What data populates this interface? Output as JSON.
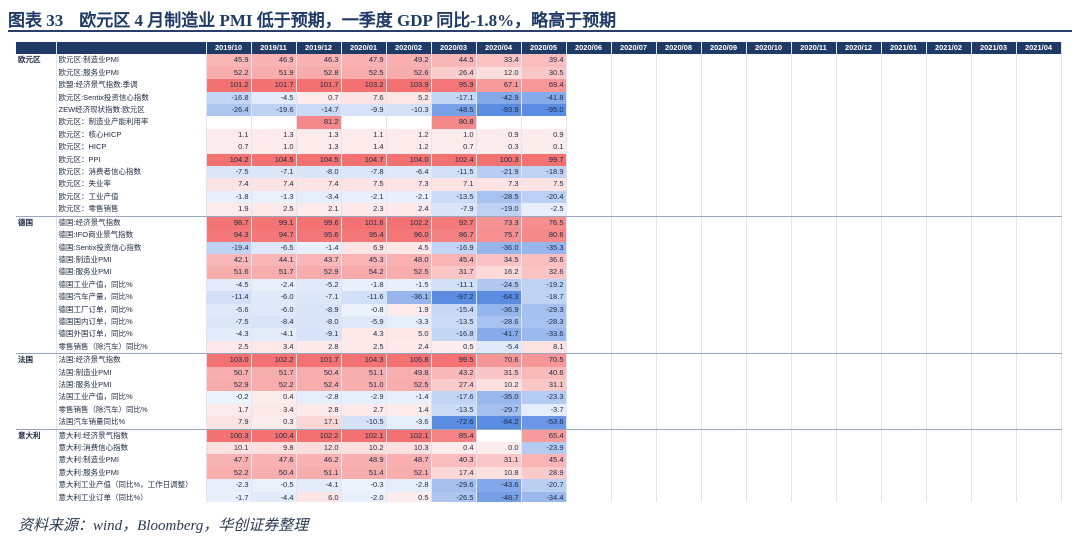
{
  "title": {
    "number": "图表 33",
    "text": "欧元区 4 月制造业 PMI 低于预期，一季度 GDP 同比-1.8%，略高于预期"
  },
  "columns": [
    "2019/10",
    "2019/11",
    "2019/12",
    "2020/01",
    "2020/02",
    "2020/03",
    "2020/04",
    "2020/05",
    "2020/06",
    "2020/07",
    "2020/08",
    "2020/09",
    "2020/10",
    "2020/11",
    "2020/12",
    "2021/01",
    "2021/02",
    "2021/03",
    "2021/04"
  ],
  "rows": [
    {
      "group": "欧元区",
      "label": "欧元区:制造业PMI",
      "values": [
        "45.9",
        "46.9",
        "46.3",
        "47.9",
        "49.2",
        "44.5",
        "33.4",
        "39.4",
        "",
        "",
        "",
        "",
        "",
        "",
        "",
        "",
        "",
        "",
        ""
      ]
    },
    {
      "group": "",
      "label": "欧元区:服务业PMI",
      "values": [
        "52.2",
        "51.9",
        "52.8",
        "52.5",
        "52.6",
        "26.4",
        "12.0",
        "30.5",
        "",
        "",
        "",
        "",
        "",
        "",
        "",
        "",
        "",
        "",
        ""
      ]
    },
    {
      "group": "",
      "label": "欧盟:经济景气指数:季调",
      "values": [
        "101.2",
        "101.7",
        "101.7",
        "103.2",
        "103.9",
        "95.9",
        "67.1",
        "69.4",
        "",
        "",
        "",
        "",
        "",
        "",
        "",
        "",
        "",
        "",
        ""
      ]
    },
    {
      "group": "",
      "label": "欧元区:Sentix投资信心指数",
      "values": [
        "-16.8",
        "-4.5",
        "0.7",
        "7.6",
        "5.2",
        "-17.1",
        "-42.9",
        "-41.8",
        "",
        "",
        "",
        "",
        "",
        "",
        "",
        "",
        "",
        "",
        ""
      ]
    },
    {
      "group": "",
      "label": "ZEW经济现状指数:欧元区",
      "values": [
        "-26.4",
        "-19.6",
        "-14.7",
        "-9.9",
        "-10.3",
        "-48.5",
        "-93.9",
        "-95.0",
        "",
        "",
        "",
        "",
        "",
        "",
        "",
        "",
        "",
        "",
        ""
      ]
    },
    {
      "group": "",
      "label": "欧元区：制造业产能利用率",
      "values": [
        "",
        "",
        "81.2",
        "",
        "",
        "80.8",
        "",
        "",
        "",
        "",
        "",
        "",
        "",
        "",
        "",
        "",
        "",
        "",
        ""
      ]
    },
    {
      "group": "",
      "label": "欧元区：核心HICP",
      "values": [
        "1.1",
        "1.3",
        "1.3",
        "1.1",
        "1.2",
        "1.0",
        "0.9",
        "0.9",
        "",
        "",
        "",
        "",
        "",
        "",
        "",
        "",
        "",
        "",
        ""
      ]
    },
    {
      "group": "",
      "label": "欧元区：HICP",
      "values": [
        "0.7",
        "1.0",
        "1.3",
        "1.4",
        "1.2",
        "0.7",
        "0.3",
        "0.1",
        "",
        "",
        "",
        "",
        "",
        "",
        "",
        "",
        "",
        "",
        ""
      ]
    },
    {
      "group": "",
      "label": "欧元区：PPI",
      "values": [
        "104.2",
        "104.5",
        "104.5",
        "104.7",
        "104.0",
        "102.4",
        "100.3",
        "99.7",
        "",
        "",
        "",
        "",
        "",
        "",
        "",
        "",
        "",
        "",
        ""
      ]
    },
    {
      "group": "",
      "label": "欧元区：消费者信心指数",
      "values": [
        "-7.5",
        "-7.1",
        "-8.0",
        "-7.8",
        "-6.4",
        "-11.5",
        "-21.9",
        "-18.9",
        "",
        "",
        "",
        "",
        "",
        "",
        "",
        "",
        "",
        "",
        ""
      ]
    },
    {
      "group": "",
      "label": "欧元区：失业率",
      "values": [
        "7.4",
        "7.4",
        "7.4",
        "7.5",
        "7.3",
        "7.1",
        "7.3",
        "7.5",
        "",
        "",
        "",
        "",
        "",
        "",
        "",
        "",
        "",
        "",
        ""
      ]
    },
    {
      "group": "",
      "label": "欧元区：工业产值",
      "values": [
        "-1.8",
        "-1.3",
        "-3.4",
        "-2.1",
        "-2.1",
        "-13.5",
        "-28.5",
        "-20.4",
        "",
        "",
        "",
        "",
        "",
        "",
        "",
        "",
        "",
        "",
        ""
      ]
    },
    {
      "group": "",
      "label": "欧元区：零售销售",
      "values": [
        "1.9",
        "2.5",
        "2.1",
        "2.3",
        "2.4",
        "-7.9",
        "-19.0",
        "-2.5",
        "",
        "",
        "",
        "",
        "",
        "",
        "",
        "",
        "",
        "",
        ""
      ],
      "end": true
    },
    {
      "group": "德国",
      "label": "德国:经济景气指数",
      "values": [
        "98.7",
        "99.1",
        "99.6",
        "101.6",
        "102.2",
        "92.7",
        "73.3",
        "76.5",
        "",
        "",
        "",
        "",
        "",
        "",
        "",
        "",
        "",
        "",
        ""
      ]
    },
    {
      "group": "",
      "label": "德国:IFO商业景气指数",
      "values": [
        "94.3",
        "94.7",
        "95.6",
        "95.4",
        "96.0",
        "86.7",
        "75.7",
        "80.6",
        "",
        "",
        "",
        "",
        "",
        "",
        "",
        "",
        "",
        "",
        ""
      ]
    },
    {
      "group": "",
      "label": "德国:Sentix投资信心指数",
      "values": [
        "-19.4",
        "-6.5",
        "-1.4",
        "6.9",
        "4.5",
        "-16.9",
        "-36.0",
        "-35.3",
        "",
        "",
        "",
        "",
        "",
        "",
        "",
        "",
        "",
        "",
        ""
      ]
    },
    {
      "group": "",
      "label": "德国:制造业PMI",
      "values": [
        "42.1",
        "44.1",
        "43.7",
        "45.3",
        "48.0",
        "45.4",
        "34.5",
        "36.6",
        "",
        "",
        "",
        "",
        "",
        "",
        "",
        "",
        "",
        "",
        ""
      ]
    },
    {
      "group": "",
      "label": "德国:服务业PMI",
      "values": [
        "51.6",
        "51.7",
        "52.9",
        "54.2",
        "52.5",
        "31.7",
        "16.2",
        "32.6",
        "",
        "",
        "",
        "",
        "",
        "",
        "",
        "",
        "",
        "",
        ""
      ]
    },
    {
      "group": "",
      "label": "德国工业产值，同比%",
      "values": [
        "-4.5",
        "-2.4",
        "-5.2",
        "-1.8",
        "-1.5",
        "-11.1",
        "-24.5",
        "-19.2",
        "",
        "",
        "",
        "",
        "",
        "",
        "",
        "",
        "",
        "",
        ""
      ]
    },
    {
      "group": "",
      "label": "德国汽车产量，同比%",
      "values": [
        "-11.4",
        "-6.0",
        "-7.1",
        "-11.6",
        "-36.1",
        "-97.2",
        "-64.3",
        "-18.7",
        "",
        "",
        "",
        "",
        "",
        "",
        "",
        "",
        "",
        "",
        ""
      ]
    },
    {
      "group": "",
      "label": "德国工厂订单，同比%",
      "values": [
        "-5.6",
        "-6.0",
        "-8.9",
        "-0.8",
        "1.9",
        "-15.4",
        "-36.9",
        "-29.3",
        "",
        "",
        "",
        "",
        "",
        "",
        "",
        "",
        "",
        "",
        ""
      ]
    },
    {
      "group": "",
      "label": "德国国内订单，同比%",
      "values": [
        "-7.5",
        "-8.4",
        "-8.0",
        "-5.9",
        "-3.3",
        "-13.5",
        "-28.6",
        "-28.3",
        "",
        "",
        "",
        "",
        "",
        "",
        "",
        "",
        "",
        "",
        ""
      ]
    },
    {
      "group": "",
      "label": "德国外国订单，同比%",
      "values": [
        "-4.3",
        "-4.1",
        "-9.1",
        "4.3",
        "5.0",
        "-16.8",
        "-41.7",
        "-33.6",
        "",
        "",
        "",
        "",
        "",
        "",
        "",
        "",
        "",
        "",
        ""
      ]
    },
    {
      "group": "",
      "label": "零售销售（除汽车）同比%",
      "values": [
        "2.5",
        "3.4",
        "2.8",
        "2.5",
        "2.4",
        "0.5",
        "-5.4",
        "8.1",
        "",
        "",
        "",
        "",
        "",
        "",
        "",
        "",
        "",
        "",
        ""
      ],
      "end": true
    },
    {
      "group": "法国",
      "label": "法国:经济景气指数",
      "values": [
        "103.0",
        "102.2",
        "101.7",
        "104.3",
        "105.8",
        "99.5",
        "70.6",
        "70.5",
        "",
        "",
        "",
        "",
        "",
        "",
        "",
        "",
        "",
        "",
        ""
      ]
    },
    {
      "group": "",
      "label": "法国:制造业PMI",
      "values": [
        "50.7",
        "51.7",
        "50.4",
        "51.1",
        "49.8",
        "43.2",
        "31.5",
        "40.6",
        "",
        "",
        "",
        "",
        "",
        "",
        "",
        "",
        "",
        "",
        ""
      ]
    },
    {
      "group": "",
      "label": "法国:服务业PMI",
      "values": [
        "52.9",
        "52.2",
        "52.4",
        "51.0",
        "52.5",
        "27.4",
        "10.2",
        "31.1",
        "",
        "",
        "",
        "",
        "",
        "",
        "",
        "",
        "",
        "",
        ""
      ]
    },
    {
      "group": "",
      "label": "法国工业产值，同比%",
      "values": [
        "-0.2",
        "0.4",
        "-2.8",
        "-2.9",
        "-1.4",
        "-17.6",
        "-35.0",
        "-23.3",
        "",
        "",
        "",
        "",
        "",
        "",
        "",
        "",
        "",
        "",
        ""
      ]
    },
    {
      "group": "",
      "label": "零售销售（除汽车）同比%",
      "values": [
        "1.7",
        "3.4",
        "2.8",
        "2.7",
        "1.4",
        "-13.5",
        "-29.7",
        "-3.7",
        "",
        "",
        "",
        "",
        "",
        "",
        "",
        "",
        "",
        "",
        ""
      ]
    },
    {
      "group": "",
      "label": "法国汽车销量同比%",
      "values": [
        "7.9",
        "0.3",
        "17.1",
        "-10.5",
        "-3.6",
        "-72.6",
        "-84.2",
        "-53.6",
        "",
        "",
        "",
        "",
        "",
        "",
        "",
        "",
        "",
        "",
        ""
      ],
      "end": true
    },
    {
      "group": "意大利",
      "label": "意大利:经济景气指数",
      "values": [
        "100.3",
        "100.4",
        "102.2",
        "102.1",
        "102.1",
        "85.4",
        "",
        "65.4",
        "",
        "",
        "",
        "",
        "",
        "",
        "",
        "",
        "",
        "",
        ""
      ]
    },
    {
      "group": "",
      "label": "意大利:消费信心指数",
      "values": [
        "10.1",
        "9.8",
        "12.0",
        "10.2",
        "10.3",
        "0.4",
        "0.0",
        "-23.9",
        "",
        "",
        "",
        "",
        "",
        "",
        "",
        "",
        "",
        "",
        ""
      ]
    },
    {
      "group": "",
      "label": "意大利:制造业PMI",
      "values": [
        "47.7",
        "47.6",
        "46.2",
        "48.9",
        "48.7",
        "40.3",
        "31.1",
        "45.4",
        "",
        "",
        "",
        "",
        "",
        "",
        "",
        "",
        "",
        "",
        ""
      ]
    },
    {
      "group": "",
      "label": "意大利:服务业PMI",
      "values": [
        "52.2",
        "50.4",
        "51.1",
        "51.4",
        "52.1",
        "17.4",
        "10.8",
        "28.9",
        "",
        "",
        "",
        "",
        "",
        "",
        "",
        "",
        "",
        "",
        ""
      ]
    },
    {
      "group": "",
      "label": "意大利工业产值（同比%，工作日调整）",
      "values": [
        "-2.3",
        "-0.5",
        "-4.1",
        "-0.3",
        "-2.8",
        "-29.6",
        "-43.6",
        "-20.7",
        "",
        "",
        "",
        "",
        "",
        "",
        "",
        "",
        "",
        "",
        ""
      ]
    },
    {
      "group": "",
      "label": "意大利工业订单（同比%）",
      "values": [
        "-1.7",
        "-4.4",
        "6.0",
        "-2.0",
        "0.5",
        "-26.5",
        "-48.7",
        "-34.4",
        "",
        "",
        "",
        "",
        "",
        "",
        "",
        "",
        "",
        "",
        ""
      ]
    },
    {
      "group": "",
      "label": "意大利新车注册（同比%）",
      "values": [
        "7.0",
        "2.5",
        "12.8",
        "-1.3",
        "-8.6",
        "-85.4",
        "-97.5",
        "-49.6",
        "",
        "",
        "",
        "",
        "",
        "",
        "",
        "",
        "",
        "",
        ""
      ]
    },
    {
      "group": "",
      "label": "意大利零售销售（同比%）",
      "values": [
        "1.0",
        "1.0",
        "0.8",
        "1.4",
        "5.8",
        "-19.4",
        "-26.8",
        "-10.2",
        "",
        "",
        "",
        "",
        "",
        "",
        "",
        "",
        "",
        "",
        ""
      ],
      "end": true
    }
  ],
  "footnote": "资料来源：wind，Bloomberg，华创证券整理"
}
